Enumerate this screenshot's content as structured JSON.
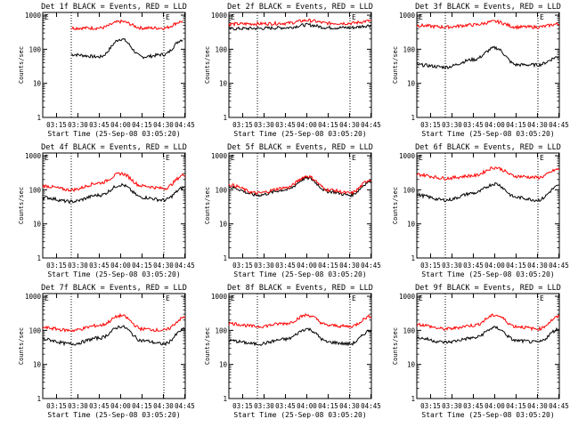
{
  "page": {
    "background": "#ffffff"
  },
  "common": {
    "y_label": "Counts/sec",
    "x_label": "Start Time (25-Sep-08 03:05:20)",
    "x_ticks": [
      "03:15",
      "03:30",
      "03:45",
      "04:00",
      "04:15",
      "04:30",
      "04:45"
    ],
    "y_ticks": [
      "1",
      "10",
      "100",
      "1000"
    ],
    "marker_text": "E",
    "colors": {
      "events": "#000000",
      "lld": "#ff0000"
    }
  },
  "chart_data": [
    {
      "type": "line",
      "title": "Det 1f BLACK = Events, RED = LLD",
      "xlabel": "Start Time (25-Sep-08 03:05:20)",
      "ylabel": "Counts/sec",
      "yscale": "log",
      "ylim": [
        1,
        1200
      ],
      "xlim_minutes_after_start": [
        0,
        100
      ],
      "vlines_dotted_minutes": [
        20,
        85
      ],
      "series": [
        {
          "name": "BLACK = Events",
          "color": "#000000",
          "x": [
            20,
            40,
            55,
            70,
            85,
            98
          ],
          "y": [
            70,
            60,
            200,
            60,
            70,
            190
          ]
        },
        {
          "name": "RED = LLD",
          "color": "#ff0000",
          "x": [
            20,
            40,
            55,
            70,
            85,
            98
          ],
          "y": [
            420,
            420,
            650,
            420,
            420,
            650
          ]
        }
      ]
    },
    {
      "type": "line",
      "title": "Det 2f BLACK = Events, RED = LLD",
      "xlabel": "Start Time (25-Sep-08 03:05:20)",
      "ylabel": "Counts/sec",
      "yscale": "log",
      "ylim": [
        1,
        1200
      ],
      "xlim_minutes_after_start": [
        0,
        100
      ],
      "vlines_dotted_minutes": [
        20,
        85
      ],
      "series": [
        {
          "name": "BLACK = Events",
          "color": "#000000",
          "x": [
            0,
            20,
            40,
            55,
            70,
            85,
            100
          ],
          "y": [
            400,
            410,
            430,
            520,
            430,
            430,
            500
          ]
        },
        {
          "name": "RED = LLD",
          "color": "#ff0000",
          "x": [
            0,
            20,
            40,
            55,
            70,
            85,
            100
          ],
          "y": [
            550,
            560,
            580,
            700,
            580,
            580,
            680
          ]
        }
      ]
    },
    {
      "type": "line",
      "title": "Det 3f BLACK = Events, RED = LLD",
      "xlabel": "Start Time (25-Sep-08 03:05:20)",
      "ylabel": "Counts/sec",
      "yscale": "log",
      "ylim": [
        1,
        1200
      ],
      "xlim_minutes_after_start": [
        0,
        100
      ],
      "vlines_dotted_minutes": [
        20,
        85
      ],
      "series": [
        {
          "name": "BLACK = Events",
          "color": "#000000",
          "x": [
            0,
            20,
            40,
            55,
            70,
            85,
            100
          ],
          "y": [
            35,
            30,
            50,
            110,
            35,
            35,
            60
          ]
        },
        {
          "name": "RED = LLD",
          "color": "#ff0000",
          "x": [
            0,
            20,
            40,
            55,
            70,
            85,
            100
          ],
          "y": [
            500,
            450,
            520,
            650,
            450,
            450,
            550
          ]
        }
      ]
    },
    {
      "type": "line",
      "title": "Det 4f BLACK = Events, RED = LLD",
      "xlabel": "Start Time (25-Sep-08 03:05:20)",
      "ylabel": "Counts/sec",
      "yscale": "log",
      "ylim": [
        1,
        1200
      ],
      "xlim_minutes_after_start": [
        0,
        100
      ],
      "vlines_dotted_minutes": [
        20,
        85
      ],
      "series": [
        {
          "name": "BLACK = Events",
          "color": "#000000",
          "x": [
            0,
            20,
            40,
            55,
            70,
            85,
            100
          ],
          "y": [
            60,
            45,
            70,
            140,
            60,
            50,
            120
          ]
        },
        {
          "name": "RED = LLD",
          "color": "#ff0000",
          "x": [
            0,
            20,
            40,
            55,
            70,
            85,
            100
          ],
          "y": [
            130,
            100,
            160,
            300,
            130,
            110,
            280
          ]
        }
      ]
    },
    {
      "type": "line",
      "title": "Det 5f BLACK = Events, RED = LLD",
      "xlabel": "Start Time (25-Sep-08 03:05:20)",
      "ylabel": "Counts/sec",
      "yscale": "log",
      "ylim": [
        1,
        1200
      ],
      "xlim_minutes_after_start": [
        0,
        100
      ],
      "vlines_dotted_minutes": [
        20,
        85
      ],
      "series": [
        {
          "name": "BLACK = Events",
          "color": "#000000",
          "x": [
            0,
            20,
            40,
            55,
            70,
            85,
            100
          ],
          "y": [
            120,
            70,
            100,
            220,
            90,
            70,
            180
          ]
        },
        {
          "name": "RED = LLD",
          "color": "#ff0000",
          "x": [
            0,
            20,
            40,
            55,
            70,
            85,
            100
          ],
          "y": [
            140,
            80,
            115,
            250,
            100,
            80,
            200
          ]
        }
      ]
    },
    {
      "type": "line",
      "title": "Det 6f BLACK = Events, RED = LLD",
      "xlabel": "Start Time (25-Sep-08 03:05:20)",
      "ylabel": "Counts/sec",
      "yscale": "log",
      "ylim": [
        1,
        1200
      ],
      "xlim_minutes_after_start": [
        0,
        100
      ],
      "vlines_dotted_minutes": [
        20,
        85
      ],
      "series": [
        {
          "name": "BLACK = Events",
          "color": "#000000",
          "x": [
            0,
            20,
            40,
            55,
            70,
            85,
            100
          ],
          "y": [
            70,
            50,
            80,
            150,
            60,
            50,
            130
          ]
        },
        {
          "name": "RED = LLD",
          "color": "#ff0000",
          "x": [
            0,
            20,
            40,
            55,
            70,
            85,
            100
          ],
          "y": [
            280,
            220,
            260,
            450,
            250,
            230,
            400
          ]
        }
      ]
    },
    {
      "type": "line",
      "title": "Det 7f BLACK = Events, RED = LLD",
      "xlabel": "Start Time (25-Sep-08 03:05:20)",
      "ylabel": "Counts/sec",
      "yscale": "log",
      "ylim": [
        1,
        1200
      ],
      "xlim_minutes_after_start": [
        0,
        100
      ],
      "vlines_dotted_minutes": [
        20,
        85
      ],
      "series": [
        {
          "name": "BLACK = Events",
          "color": "#000000",
          "x": [
            0,
            20,
            40,
            55,
            70,
            85,
            100
          ],
          "y": [
            55,
            40,
            60,
            130,
            50,
            40,
            110
          ]
        },
        {
          "name": "RED = LLD",
          "color": "#ff0000",
          "x": [
            0,
            20,
            40,
            55,
            70,
            85,
            100
          ],
          "y": [
            120,
            100,
            140,
            270,
            110,
            100,
            240
          ]
        }
      ]
    },
    {
      "type": "line",
      "title": "Det 8f BLACK = Events, RED = LLD",
      "xlabel": "Start Time (25-Sep-08 03:05:20)",
      "ylabel": "Counts/sec",
      "yscale": "log",
      "ylim": [
        1,
        1200
      ],
      "xlim_minutes_after_start": [
        0,
        100
      ],
      "vlines_dotted_minutes": [
        20,
        85
      ],
      "series": [
        {
          "name": "BLACK = Events",
          "color": "#000000",
          "x": [
            0,
            20,
            40,
            55,
            70,
            85,
            100
          ],
          "y": [
            50,
            40,
            55,
            110,
            45,
            40,
            100
          ]
        },
        {
          "name": "RED = LLD",
          "color": "#ff0000",
          "x": [
            0,
            20,
            40,
            55,
            70,
            85,
            100
          ],
          "y": [
            160,
            130,
            160,
            280,
            140,
            130,
            260
          ]
        }
      ]
    },
    {
      "type": "line",
      "title": "Det 9f BLACK = Events, RED = LLD",
      "xlabel": "Start Time (25-Sep-08 03:05:20)",
      "ylabel": "Counts/sec",
      "yscale": "log",
      "ylim": [
        1,
        1200
      ],
      "xlim_minutes_after_start": [
        0,
        100
      ],
      "vlines_dotted_minutes": [
        20,
        85
      ],
      "series": [
        {
          "name": "BLACK = Events",
          "color": "#000000",
          "x": [
            0,
            20,
            40,
            55,
            70,
            85,
            100
          ],
          "y": [
            60,
            45,
            60,
            120,
            50,
            45,
            110
          ]
        },
        {
          "name": "RED = LLD",
          "color": "#ff0000",
          "x": [
            0,
            20,
            40,
            55,
            70,
            85,
            100
          ],
          "y": [
            150,
            110,
            140,
            280,
            130,
            110,
            250
          ]
        }
      ]
    }
  ]
}
